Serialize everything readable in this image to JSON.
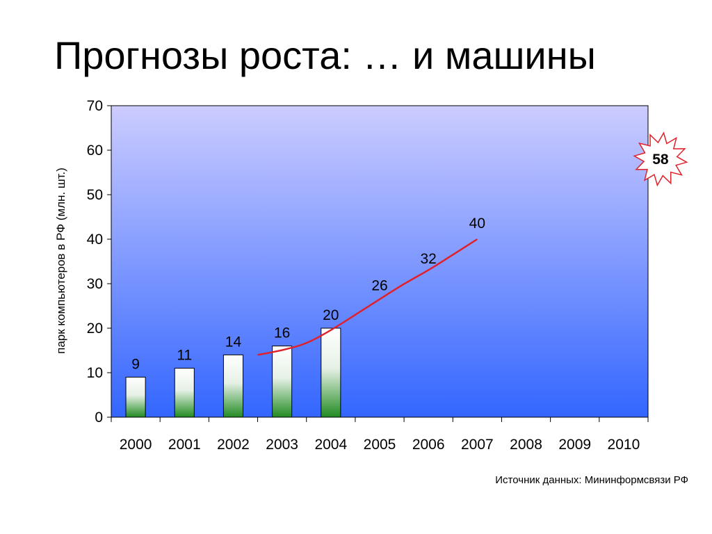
{
  "slide": {
    "title": "Прогнозы роста: … и машины",
    "source": "Источник данных: Мининформсвязи РФ"
  },
  "chart_data": {
    "type": "bar",
    "categories": [
      "2000",
      "2001",
      "2002",
      "2003",
      "2004",
      "2005",
      "2006",
      "2007",
      "2008",
      "2009",
      "2010"
    ],
    "ylabel": "парк компьютеров в РФ (млн. шт.)",
    "ylim": [
      0,
      70
    ],
    "yticks": [
      0,
      10,
      20,
      30,
      40,
      50,
      60,
      70
    ],
    "grid": false,
    "bars": {
      "categories": [
        "2000",
        "2001",
        "2002",
        "2003",
        "2004"
      ],
      "values": [
        9,
        11,
        14,
        16,
        20
      ],
      "labels": [
        "9",
        "11",
        "14",
        "16",
        "20"
      ]
    },
    "forecast_line": {
      "x": [
        2002.5,
        2003,
        2003.5,
        2004,
        2004.5,
        2005,
        2005.5,
        2006,
        2006.5,
        2007
      ],
      "y": [
        14,
        15,
        16.5,
        19.5,
        23,
        26.5,
        30,
        33,
        36.5,
        40
      ],
      "color": "#e0202a"
    },
    "forecast_labels": [
      {
        "category": "2005",
        "value": 26,
        "text": "26"
      },
      {
        "category": "2006",
        "value": 32,
        "text": "32"
      },
      {
        "category": "2007",
        "value": 40,
        "text": "40"
      }
    ],
    "callout": {
      "category": "2010",
      "value": 58,
      "text": "58",
      "color": "#e0202a"
    },
    "background_gradient": {
      "top": "#ccccff",
      "bottom": "#3366ff"
    },
    "bar_gradient": {
      "top": "#ffffff",
      "bottom": "#228b22"
    }
  }
}
